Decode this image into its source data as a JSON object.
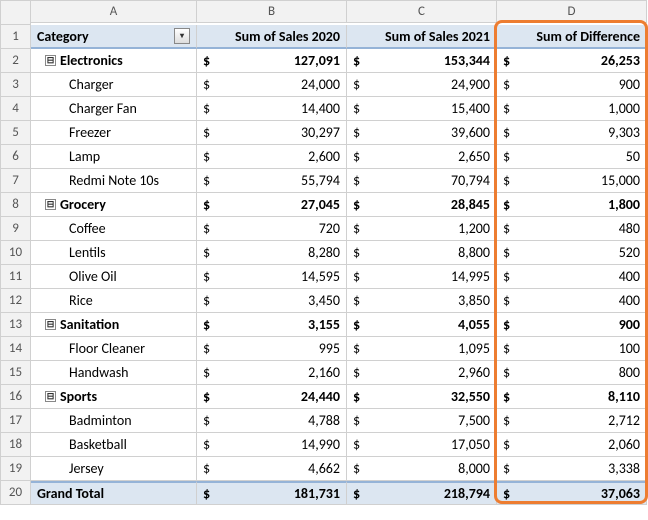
{
  "columns": [
    "A",
    "B",
    "C",
    "D"
  ],
  "header": {
    "category": "Category",
    "col_b": "Sum of Sales 2020",
    "col_c": "Sum of Sales 2021",
    "col_d": "Sum of Difference",
    "filter_icon": "▾"
  },
  "collapse_glyph": "⊟",
  "currency": "$",
  "rows": [
    {
      "n": 2,
      "type": "group",
      "label": "Electronics",
      "b": "127,091",
      "c": "153,344",
      "d": "26,253"
    },
    {
      "n": 3,
      "type": "item",
      "label": "Charger",
      "b": "24,000",
      "c": "24,900",
      "d": "900"
    },
    {
      "n": 4,
      "type": "item",
      "label": "Charger  Fan",
      "b": "14,400",
      "c": "15,400",
      "d": "1,000"
    },
    {
      "n": 5,
      "type": "item",
      "label": "Freezer",
      "b": "30,297",
      "c": "39,600",
      "d": "9,303"
    },
    {
      "n": 6,
      "type": "item",
      "label": "Lamp",
      "b": "2,600",
      "c": "2,650",
      "d": "50"
    },
    {
      "n": 7,
      "type": "item",
      "label": "Redmi Note 10s",
      "b": "55,794",
      "c": "70,794",
      "d": "15,000"
    },
    {
      "n": 8,
      "type": "group",
      "label": "Grocery",
      "b": "27,045",
      "c": "28,845",
      "d": "1,800"
    },
    {
      "n": 9,
      "type": "item",
      "label": "Coffee",
      "b": "720",
      "c": "1,200",
      "d": "480"
    },
    {
      "n": 10,
      "type": "item",
      "label": "Lentils",
      "b": "8,280",
      "c": "8,800",
      "d": "520"
    },
    {
      "n": 11,
      "type": "item",
      "label": "Olive Oil",
      "b": "14,595",
      "c": "14,995",
      "d": "400"
    },
    {
      "n": 12,
      "type": "item",
      "label": "Rice",
      "b": "3,450",
      "c": "3,850",
      "d": "400"
    },
    {
      "n": 13,
      "type": "group",
      "label": "Sanitation",
      "b": "3,155",
      "c": "4,055",
      "d": "900"
    },
    {
      "n": 14,
      "type": "item",
      "label": "Floor Cleaner",
      "b": "995",
      "c": "1,095",
      "d": "100"
    },
    {
      "n": 15,
      "type": "item",
      "label": "Handwash",
      "b": "2,160",
      "c": "2,960",
      "d": "800"
    },
    {
      "n": 16,
      "type": "group",
      "label": "Sports",
      "b": "24,440",
      "c": "32,550",
      "d": "8,110"
    },
    {
      "n": 17,
      "type": "item",
      "label": "Badminton",
      "b": "4,788",
      "c": "7,500",
      "d": "2,712"
    },
    {
      "n": 18,
      "type": "item",
      "label": "Basketball",
      "b": "14,990",
      "c": "17,050",
      "d": "2,060"
    },
    {
      "n": 19,
      "type": "item",
      "label": "Jersey",
      "b": "4,662",
      "c": "8,000",
      "d": "3,338"
    }
  ],
  "grand_total": {
    "n": 20,
    "label": "Grand Total",
    "b": "181,731",
    "c": "218,794",
    "d": "37,063"
  },
  "highlight": {
    "color": "#ed7d31"
  }
}
